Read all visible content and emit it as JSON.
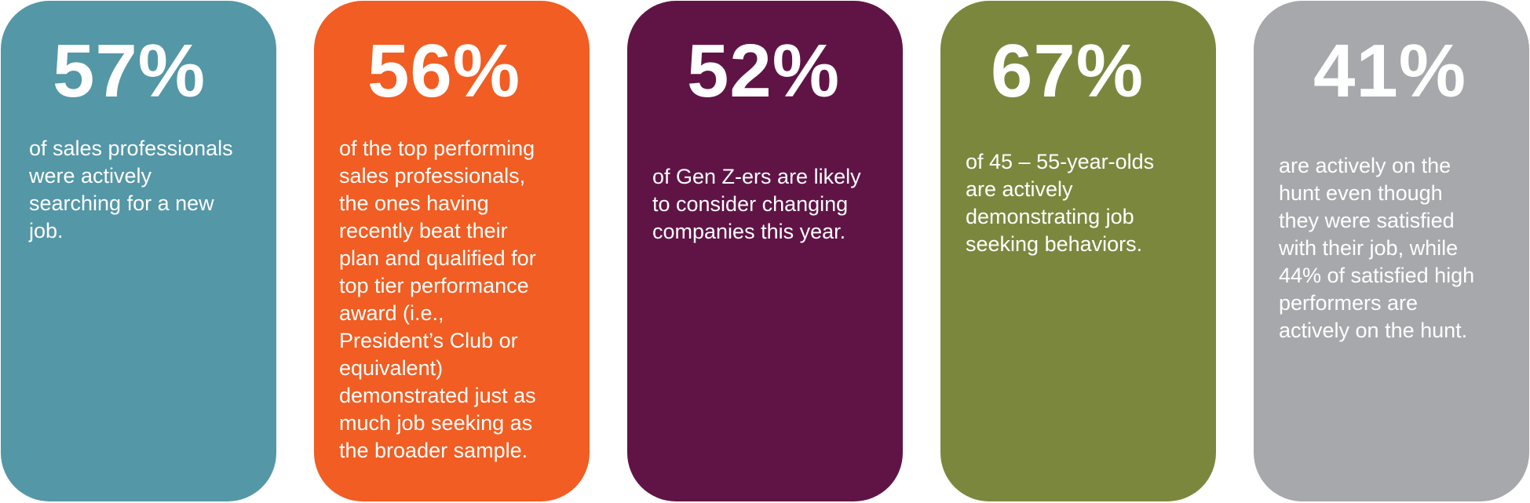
{
  "colors": {
    "card1": "#5497a7",
    "card2": "#f15d22",
    "card3": "#601446",
    "card4": "#7c873e",
    "card5": "#a6a8ab",
    "text": "#ffffff"
  },
  "cards": [
    {
      "percent": "57%",
      "description": "of sales professionals\nwere actively\nsearching for a new\njob."
    },
    {
      "percent": "56%",
      "description": "of the top performing\nsales professionals,\nthe ones having\nrecently beat their\nplan and qualified for\ntop tier performance\naward (i.e.,\nPresident’s Club or\nequivalent)\ndemonstrated just as\nmuch job seeking as\nthe broader sample."
    },
    {
      "percent": "52%",
      "description": "of Gen Z-ers are likely\nto consider changing\ncompanies this year."
    },
    {
      "percent": "67%",
      "description": "of 45 – 55-year-olds\nare actively\ndemonstrating job\nseeking behaviors."
    },
    {
      "percent": "41%",
      "description": "are actively on the\nhunt even though\nthey were satisfied\nwith their job, while\n44% of satisfied high\nperformers are\nactively on the hunt."
    }
  ]
}
